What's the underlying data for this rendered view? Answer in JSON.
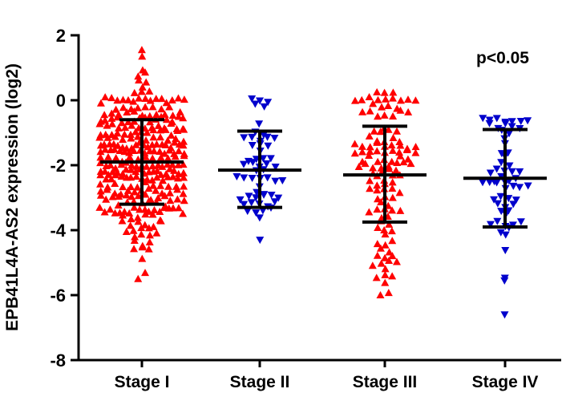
{
  "chart_data": {
    "type": "scatter",
    "title": "",
    "xlabel": "",
    "ylabel": "EPB41L4A-AS2  expression  (log2)",
    "ylim": [
      -8,
      2
    ],
    "yticks": [
      2,
      0,
      -2,
      -4,
      -6,
      -8
    ],
    "grid": false,
    "legend": "none",
    "annotation": "p<0.05",
    "categories": [
      "Stage I",
      "Stage II",
      "Stage III",
      "Stage IV"
    ],
    "groups": [
      {
        "category": "Stage I",
        "marker": "triangle-up",
        "color": "#ff0000",
        "n": 300,
        "mean": -1.9,
        "sd_upper": -0.6,
        "sd_lower": -3.2,
        "min": -5.5,
        "max": 1.55
      },
      {
        "category": "Stage II",
        "marker": "triangle-down",
        "color": "#0000cc",
        "n": 55,
        "mean": -2.15,
        "sd_upper": -0.95,
        "sd_lower": -3.3,
        "min": -4.3,
        "max": 0.05
      },
      {
        "category": "Stage III",
        "marker": "triangle-up",
        "color": "#ff0000",
        "n": 120,
        "mean": -2.3,
        "sd_upper": -0.8,
        "sd_lower": -3.75,
        "min": -6.0,
        "max": 0.25
      },
      {
        "category": "Stage IV",
        "marker": "triangle-down",
        "color": "#0000cc",
        "n": 60,
        "mean": -2.4,
        "sd_upper": -0.9,
        "sd_lower": -3.9,
        "min": -6.6,
        "max": -0.55
      }
    ]
  }
}
